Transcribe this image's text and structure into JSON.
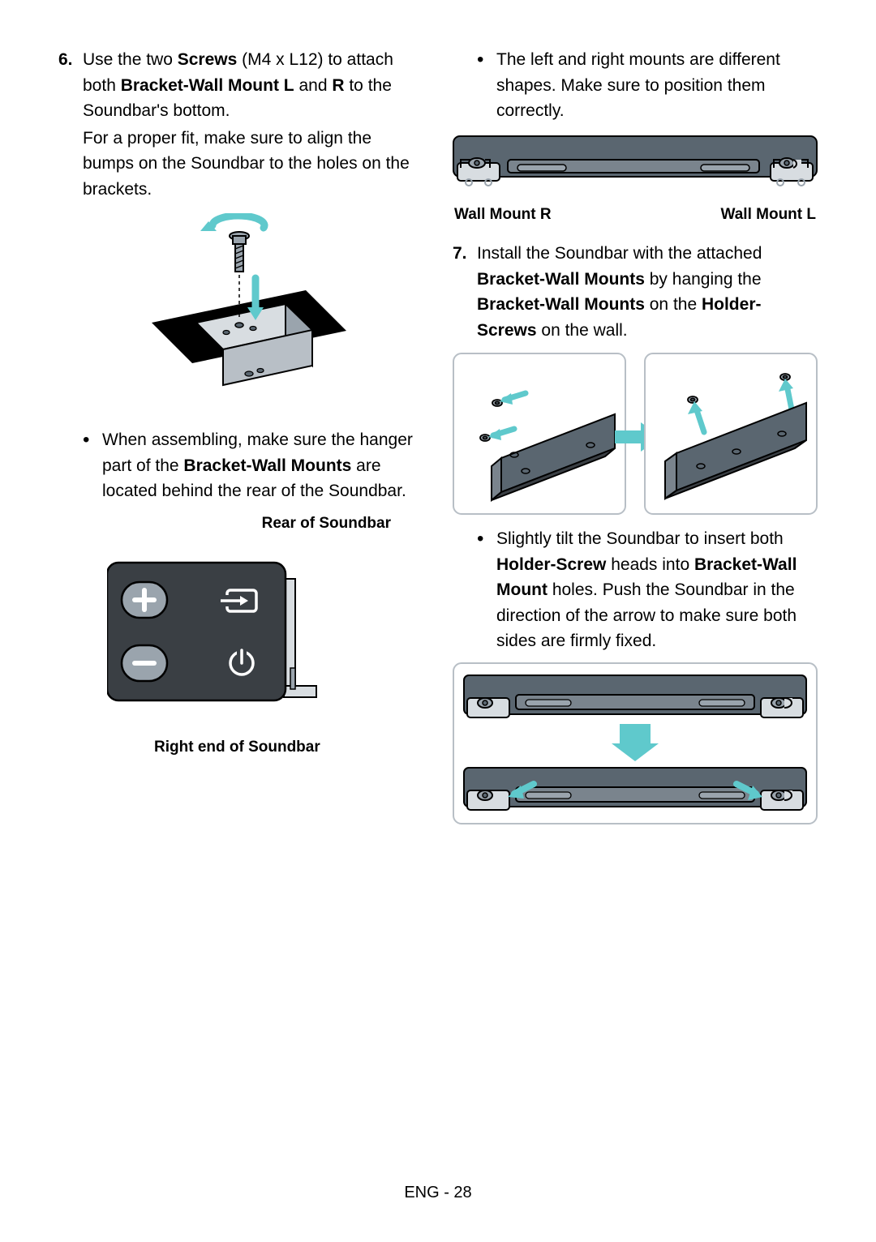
{
  "colors": {
    "text": "#000000",
    "accent_cyan": "#5fc9cc",
    "accent_cyan_dark": "#3ab5b8",
    "figure_dark": "#5a6670",
    "figure_mid": "#9aa4ad",
    "figure_light": "#d8dde1",
    "figure_lighter": "#eef1f3",
    "border_gray": "#b8bfc6",
    "black": "#000000",
    "white": "#ffffff"
  },
  "left": {
    "step6": {
      "num": "6.",
      "parts": [
        {
          "t": "Use the two ",
          "b": false
        },
        {
          "t": "Screws",
          "b": true
        },
        {
          "t": " (M4 x L12) to attach both ",
          "b": false
        },
        {
          "t": "Bracket-Wall Mount L",
          "b": true
        },
        {
          "t": " and ",
          "b": false
        },
        {
          "t": "R",
          "b": true
        },
        {
          "t": " to the Soundbar's bottom.",
          "b": false
        }
      ],
      "para2": "For a proper fit, make sure to align the bumps on the Soundbar to the holes on the brackets."
    },
    "bullet1": {
      "parts": [
        {
          "t": "When assembling, make sure the hanger part of the ",
          "b": false
        },
        {
          "t": "Bracket-Wall Mounts",
          "b": true
        },
        {
          "t": " are located behind the rear of the Soundbar.",
          "b": false
        }
      ]
    },
    "caption_rear": "Rear of Soundbar",
    "caption_right_end": "Right end of Soundbar"
  },
  "right": {
    "bullet_top": "The left and right mounts are different shapes. Make sure to position them correctly.",
    "caption_mount_r": "Wall Mount R",
    "caption_mount_l": "Wall Mount L",
    "step7": {
      "num": "7.",
      "parts": [
        {
          "t": "Install the Soundbar with the attached ",
          "b": false
        },
        {
          "t": "Bracket-Wall Mounts",
          "b": true
        },
        {
          "t": " by hanging the ",
          "b": false
        },
        {
          "t": "Bracket-Wall Mounts",
          "b": true
        },
        {
          "t": " on the ",
          "b": false
        },
        {
          "t": "Holder-Screws",
          "b": true
        },
        {
          "t": " on the wall.",
          "b": false
        }
      ]
    },
    "bullet_tilt": {
      "parts": [
        {
          "t": "Slightly tilt the Soundbar to insert both ",
          "b": false
        },
        {
          "t": "Holder-Screw",
          "b": true
        },
        {
          "t": " heads into ",
          "b": false
        },
        {
          "t": "Bracket-Wall Mount",
          "b": true
        },
        {
          "t": " holes. Push the Soundbar in the direction of the arrow to make sure both sides are firmly fixed.",
          "b": false
        }
      ]
    }
  },
  "footer": "ENG - 28"
}
